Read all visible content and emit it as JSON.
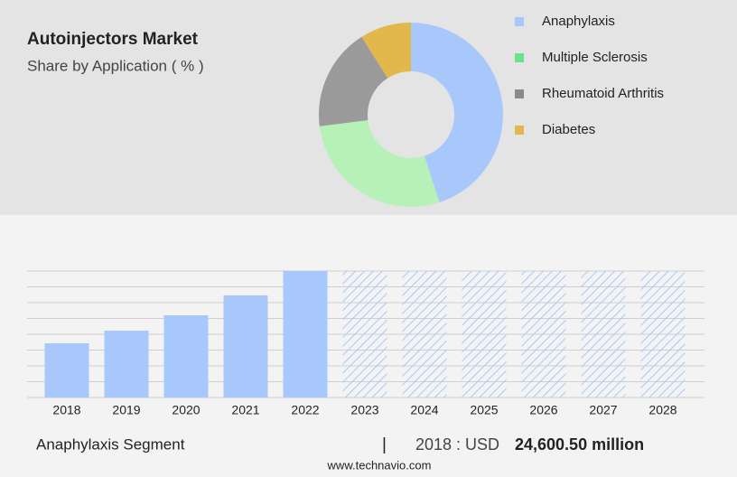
{
  "chart_data": [
    {
      "type": "pie",
      "title": "Autoinjectors Market",
      "subtitle": "Share by Application ( % )",
      "categories": [
        "Anaphylaxis",
        "Multiple Sclerosis",
        "Rheumatoid Arthritis",
        "Diabetes"
      ],
      "values": [
        45,
        28,
        18,
        9
      ],
      "colors": [
        "#a8c8fb",
        "#b6f2b8",
        "#9a9a9a",
        "#e2b84c"
      ],
      "legend_colors": [
        "#a8c8fb",
        "#6fe08f",
        "#8a8a8a",
        "#e2b84c"
      ]
    },
    {
      "type": "bar",
      "categories": [
        "2018",
        "2019",
        "2020",
        "2021",
        "2022",
        "2023",
        "2024",
        "2025",
        "2026",
        "2027",
        "2028"
      ],
      "values": [
        24600.5,
        30340,
        37310,
        46330,
        57400,
        null,
        null,
        null,
        null,
        null,
        null
      ],
      "color": "#a8c8fb",
      "ylim": [
        0,
        57400
      ],
      "grid": true
    }
  ],
  "footer": {
    "segment": "Anaphylaxis Segment",
    "separator": "|",
    "year_unit": "2018 : USD",
    "value": "24,600.50 million",
    "site": "www.technavio.com"
  }
}
